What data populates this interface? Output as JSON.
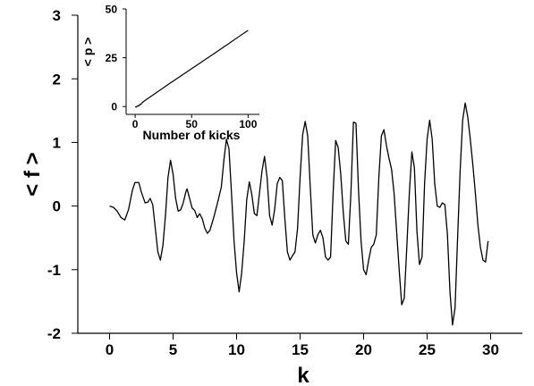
{
  "chart_data": [
    {
      "type": "line",
      "title": "",
      "xlabel": "k",
      "ylabel": "< f >",
      "xlim": [
        -2.5,
        32.5
      ],
      "ylim": [
        -2.0,
        3.0
      ],
      "x_ticks": [
        0,
        5,
        10,
        15,
        20,
        25,
        30
      ],
      "y_ticks": [
        -2,
        -1,
        0,
        1,
        2,
        3
      ],
      "grid": false,
      "series": [
        {
          "color": "#000000",
          "points": [
            [
              0.0,
              0.0
            ],
            [
              0.3,
              -0.02
            ],
            [
              0.6,
              -0.08
            ],
            [
              0.9,
              -0.18
            ],
            [
              1.2,
              -0.22
            ],
            [
              1.5,
              -0.05
            ],
            [
              1.8,
              0.25
            ],
            [
              2.0,
              0.37
            ],
            [
              2.3,
              0.37
            ],
            [
              2.5,
              0.22
            ],
            [
              2.8,
              0.05
            ],
            [
              3.0,
              0.06
            ],
            [
              3.2,
              0.12
            ],
            [
              3.4,
              0.02
            ],
            [
              3.6,
              -0.35
            ],
            [
              3.8,
              -0.72
            ],
            [
              4.0,
              -0.85
            ],
            [
              4.2,
              -0.62
            ],
            [
              4.4,
              -0.15
            ],
            [
              4.6,
              0.45
            ],
            [
              4.8,
              0.72
            ],
            [
              5.0,
              0.5
            ],
            [
              5.2,
              0.12
            ],
            [
              5.4,
              -0.08
            ],
            [
              5.6,
              -0.06
            ],
            [
              5.8,
              0.05
            ],
            [
              6.0,
              0.22
            ],
            [
              6.1,
              0.27
            ],
            [
              6.3,
              0.12
            ],
            [
              6.5,
              -0.03
            ],
            [
              6.7,
              -0.07
            ],
            [
              6.9,
              -0.18
            ],
            [
              7.1,
              -0.12
            ],
            [
              7.3,
              -0.2
            ],
            [
              7.5,
              -0.35
            ],
            [
              7.7,
              -0.43
            ],
            [
              7.9,
              -0.38
            ],
            [
              8.2,
              -0.18
            ],
            [
              8.5,
              0.05
            ],
            [
              8.8,
              0.3
            ],
            [
              9.0,
              0.72
            ],
            [
              9.2,
              1.05
            ],
            [
              9.4,
              0.9
            ],
            [
              9.6,
              0.2
            ],
            [
              9.8,
              -0.55
            ],
            [
              10.0,
              -1.05
            ],
            [
              10.2,
              -1.35
            ],
            [
              10.4,
              -1.05
            ],
            [
              10.6,
              -0.55
            ],
            [
              10.8,
              0.1
            ],
            [
              11.0,
              0.38
            ],
            [
              11.2,
              0.18
            ],
            [
              11.4,
              -0.12
            ],
            [
              11.6,
              -0.15
            ],
            [
              11.8,
              0.2
            ],
            [
              12.0,
              0.55
            ],
            [
              12.2,
              0.78
            ],
            [
              12.4,
              0.45
            ],
            [
              12.6,
              -0.15
            ],
            [
              12.8,
              -0.3
            ],
            [
              13.0,
              -0.05
            ],
            [
              13.2,
              0.35
            ],
            [
              13.4,
              0.45
            ],
            [
              13.6,
              0.4
            ],
            [
              13.8,
              -0.2
            ],
            [
              14.0,
              -0.72
            ],
            [
              14.2,
              -0.85
            ],
            [
              14.4,
              -0.78
            ],
            [
              14.6,
              -0.72
            ],
            [
              14.8,
              -0.35
            ],
            [
              15.0,
              0.45
            ],
            [
              15.2,
              1.12
            ],
            [
              15.4,
              1.33
            ],
            [
              15.6,
              1.1
            ],
            [
              15.8,
              0.3
            ],
            [
              16.0,
              -0.45
            ],
            [
              16.2,
              -0.58
            ],
            [
              16.4,
              -0.45
            ],
            [
              16.6,
              -0.38
            ],
            [
              16.8,
              -0.5
            ],
            [
              17.0,
              -0.8
            ],
            [
              17.2,
              -0.85
            ],
            [
              17.4,
              -0.8
            ],
            [
              17.6,
              0.2
            ],
            [
              17.8,
              1.03
            ],
            [
              18.0,
              0.92
            ],
            [
              18.2,
              0.5
            ],
            [
              18.4,
              -0.1
            ],
            [
              18.6,
              -0.55
            ],
            [
              18.8,
              -0.6
            ],
            [
              19.0,
              0.2
            ],
            [
              19.2,
              1.32
            ],
            [
              19.4,
              1.3
            ],
            [
              19.6,
              0.25
            ],
            [
              19.8,
              -0.55
            ],
            [
              20.0,
              -1.0
            ],
            [
              20.2,
              -1.08
            ],
            [
              20.4,
              -0.85
            ],
            [
              20.6,
              -0.65
            ],
            [
              20.8,
              -0.6
            ],
            [
              21.0,
              -0.45
            ],
            [
              21.2,
              0.45
            ],
            [
              21.4,
              1.1
            ],
            [
              21.6,
              1.2
            ],
            [
              21.8,
              0.95
            ],
            [
              22.0,
              0.75
            ],
            [
              22.2,
              0.58
            ],
            [
              22.4,
              0.2
            ],
            [
              22.6,
              -0.4
            ],
            [
              22.8,
              -1.0
            ],
            [
              23.0,
              -1.55
            ],
            [
              23.2,
              -1.45
            ],
            [
              23.4,
              -0.65
            ],
            [
              23.6,
              0.2
            ],
            [
              23.8,
              0.85
            ],
            [
              24.0,
              0.6
            ],
            [
              24.2,
              -0.4
            ],
            [
              24.4,
              -0.92
            ],
            [
              24.6,
              -0.8
            ],
            [
              24.8,
              0.35
            ],
            [
              25.0,
              1.05
            ],
            [
              25.2,
              1.35
            ],
            [
              25.4,
              1.05
            ],
            [
              25.6,
              0.35
            ],
            [
              25.8,
              0.0
            ],
            [
              26.0,
              -0.02
            ],
            [
              26.2,
              0.05
            ],
            [
              26.4,
              0.02
            ],
            [
              26.6,
              -0.45
            ],
            [
              26.8,
              -1.35
            ],
            [
              27.0,
              -1.87
            ],
            [
              27.2,
              -1.6
            ],
            [
              27.4,
              -0.5
            ],
            [
              27.6,
              0.55
            ],
            [
              27.8,
              1.35
            ],
            [
              28.0,
              1.62
            ],
            [
              28.2,
              1.4
            ],
            [
              28.4,
              1.05
            ],
            [
              28.6,
              0.65
            ],
            [
              28.8,
              0.2
            ],
            [
              29.0,
              -0.3
            ],
            [
              29.2,
              -0.65
            ],
            [
              29.4,
              -0.85
            ],
            [
              29.6,
              -0.88
            ],
            [
              29.8,
              -0.55
            ]
          ]
        }
      ]
    },
    {
      "type": "line",
      "title": "",
      "xlabel": "Number of kicks",
      "ylabel": "< p >",
      "xlim": [
        -8,
        110
      ],
      "ylim": [
        -4,
        50
      ],
      "x_ticks": [
        0,
        50,
        100
      ],
      "y_ticks": [
        0,
        25,
        50
      ],
      "grid": false,
      "series": [
        {
          "color": "#000000",
          "points": [
            [
              0,
              0.0
            ],
            [
              1,
              -0.3
            ],
            [
              2,
              0.4
            ],
            [
              3,
              0.2
            ],
            [
              4,
              1.1
            ],
            [
              5,
              1.0
            ],
            [
              6,
              1.9
            ],
            [
              8,
              2.8
            ],
            [
              10,
              3.6
            ],
            [
              15,
              5.6
            ],
            [
              20,
              7.6
            ],
            [
              30,
              11.6
            ],
            [
              40,
              15.5
            ],
            [
              50,
              19.4
            ],
            [
              60,
              23.3
            ],
            [
              70,
              27.2
            ],
            [
              80,
              31.1
            ],
            [
              90,
              35.1
            ],
            [
              100,
              39.0
            ]
          ]
        }
      ]
    }
  ]
}
